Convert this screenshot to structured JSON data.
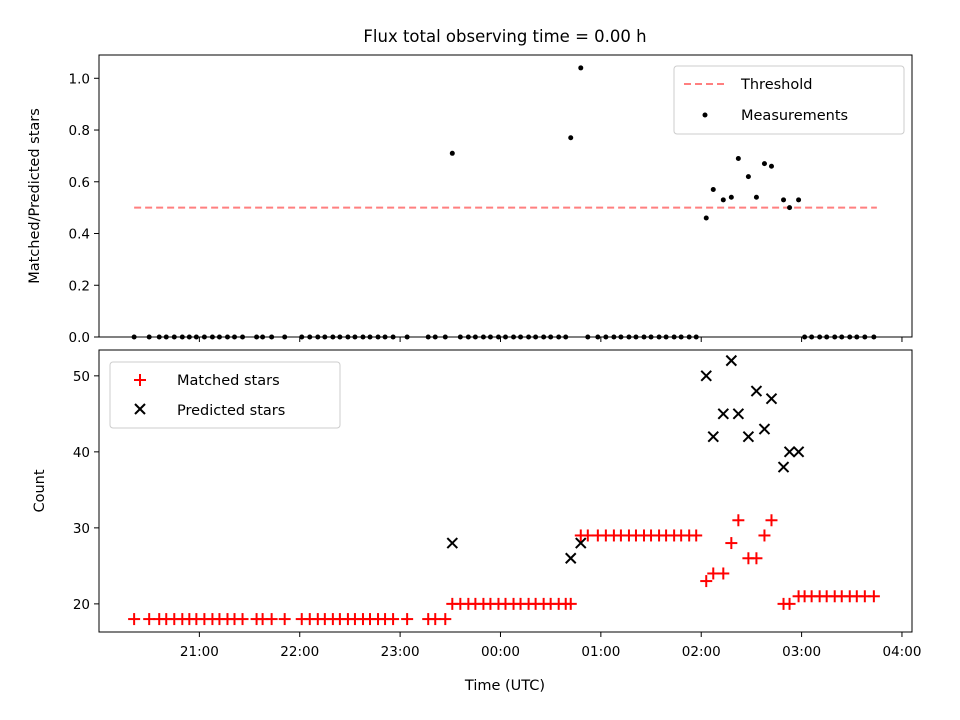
{
  "colors": {
    "threshold": "#ff7f7f",
    "measurement": "#000000",
    "matched": "#ff0000",
    "predicted": "#000000"
  },
  "chart_data": [
    {
      "type": "scatter",
      "title": "Flux total observing time = 0.00 h",
      "xlabel": "",
      "ylabel": "Matched/Predicted stars",
      "xlim": [
        20.0,
        28.1
      ],
      "ylim": [
        0.0,
        1.09
      ],
      "yticks": [
        0.0,
        0.2,
        0.4,
        0.6,
        0.8,
        1.0
      ],
      "ytick_labels": [
        "0.0",
        "0.2",
        "0.4",
        "0.6",
        "0.8",
        "1.0"
      ],
      "xticks": [
        21,
        22,
        23,
        24,
        25,
        26,
        27,
        28
      ],
      "legend": {
        "position": "top-right",
        "entries": [
          "Threshold",
          "Measurements"
        ]
      },
      "threshold": {
        "name": "Threshold",
        "y": 0.5,
        "x_range": [
          20.35,
          27.75
        ]
      },
      "series": [
        {
          "name": "Measurements",
          "marker": "dot",
          "points": [
            [
              20.35,
              0
            ],
            [
              20.5,
              0
            ],
            [
              20.6,
              0
            ],
            [
              20.67,
              0
            ],
            [
              20.75,
              0
            ],
            [
              20.83,
              0
            ],
            [
              20.9,
              0
            ],
            [
              20.97,
              0
            ],
            [
              21.05,
              0
            ],
            [
              21.13,
              0
            ],
            [
              21.2,
              0
            ],
            [
              21.28,
              0
            ],
            [
              21.35,
              0
            ],
            [
              21.43,
              0
            ],
            [
              21.57,
              0
            ],
            [
              21.63,
              0
            ],
            [
              21.72,
              0
            ],
            [
              21.85,
              0
            ],
            [
              22.02,
              0
            ],
            [
              22.1,
              0
            ],
            [
              22.18,
              0
            ],
            [
              22.25,
              0
            ],
            [
              22.33,
              0
            ],
            [
              22.4,
              0
            ],
            [
              22.48,
              0
            ],
            [
              22.55,
              0
            ],
            [
              22.63,
              0
            ],
            [
              22.7,
              0
            ],
            [
              22.78,
              0
            ],
            [
              22.85,
              0
            ],
            [
              22.93,
              0
            ],
            [
              23.07,
              0
            ],
            [
              23.28,
              0
            ],
            [
              23.35,
              0
            ],
            [
              23.45,
              0
            ],
            [
              23.52,
              0.71
            ],
            [
              23.6,
              0
            ],
            [
              23.68,
              0
            ],
            [
              23.75,
              0
            ],
            [
              23.83,
              0
            ],
            [
              23.9,
              0
            ],
            [
              23.98,
              0
            ],
            [
              24.05,
              0
            ],
            [
              24.13,
              0
            ],
            [
              24.2,
              0
            ],
            [
              24.28,
              0
            ],
            [
              24.35,
              0
            ],
            [
              24.43,
              0
            ],
            [
              24.5,
              0
            ],
            [
              24.58,
              0
            ],
            [
              24.65,
              0
            ],
            [
              24.7,
              0.77
            ],
            [
              24.8,
              1.04
            ],
            [
              24.87,
              0
            ],
            [
              24.97,
              0
            ],
            [
              25.05,
              0
            ],
            [
              25.13,
              0
            ],
            [
              25.2,
              0
            ],
            [
              25.28,
              0
            ],
            [
              25.35,
              0
            ],
            [
              25.43,
              0
            ],
            [
              25.5,
              0
            ],
            [
              25.58,
              0
            ],
            [
              25.65,
              0
            ],
            [
              25.73,
              0
            ],
            [
              25.8,
              0
            ],
            [
              25.88,
              0
            ],
            [
              25.95,
              0
            ],
            [
              26.05,
              0.46
            ],
            [
              26.12,
              0.57
            ],
            [
              26.22,
              0.53
            ],
            [
              26.3,
              0.54
            ],
            [
              26.37,
              0.69
            ],
            [
              26.47,
              0.62
            ],
            [
              26.55,
              0.54
            ],
            [
              26.63,
              0.67
            ],
            [
              26.7,
              0.66
            ],
            [
              26.82,
              0.53
            ],
            [
              26.88,
              0.5
            ],
            [
              26.97,
              0.53
            ],
            [
              27.03,
              0
            ],
            [
              27.1,
              0
            ],
            [
              27.18,
              0
            ],
            [
              27.25,
              0
            ],
            [
              27.33,
              0
            ],
            [
              27.4,
              0
            ],
            [
              27.48,
              0
            ],
            [
              27.55,
              0
            ],
            [
              27.63,
              0
            ],
            [
              27.72,
              0
            ]
          ]
        }
      ]
    },
    {
      "type": "scatter",
      "title": "",
      "xlabel": "Time (UTC)",
      "ylabel": "Count",
      "xlim": [
        20.0,
        28.1
      ],
      "ylim": [
        16.3,
        53.4
      ],
      "yticks": [
        20,
        30,
        40,
        50
      ],
      "ytick_labels": [
        "20",
        "30",
        "40",
        "50"
      ],
      "xticks": [
        21,
        22,
        23,
        24,
        25,
        26,
        27,
        28
      ],
      "xtick_labels": [
        "21:00",
        "22:00",
        "23:00",
        "00:00",
        "01:00",
        "02:00",
        "03:00",
        "04:00"
      ],
      "legend": {
        "position": "top-left",
        "entries": [
          "Matched stars",
          "Predicted stars"
        ]
      },
      "series": [
        {
          "name": "Matched stars",
          "marker": "plus",
          "points": [
            [
              20.35,
              18
            ],
            [
              20.5,
              18
            ],
            [
              20.6,
              18
            ],
            [
              20.67,
              18
            ],
            [
              20.75,
              18
            ],
            [
              20.83,
              18
            ],
            [
              20.9,
              18
            ],
            [
              20.97,
              18
            ],
            [
              21.05,
              18
            ],
            [
              21.13,
              18
            ],
            [
              21.2,
              18
            ],
            [
              21.28,
              18
            ],
            [
              21.35,
              18
            ],
            [
              21.43,
              18
            ],
            [
              21.57,
              18
            ],
            [
              21.63,
              18
            ],
            [
              21.72,
              18
            ],
            [
              21.85,
              18
            ],
            [
              22.02,
              18
            ],
            [
              22.1,
              18
            ],
            [
              22.18,
              18
            ],
            [
              22.25,
              18
            ],
            [
              22.33,
              18
            ],
            [
              22.4,
              18
            ],
            [
              22.48,
              18
            ],
            [
              22.55,
              18
            ],
            [
              22.63,
              18
            ],
            [
              22.7,
              18
            ],
            [
              22.78,
              18
            ],
            [
              22.85,
              18
            ],
            [
              22.93,
              18
            ],
            [
              23.07,
              18
            ],
            [
              23.28,
              18
            ],
            [
              23.35,
              18
            ],
            [
              23.45,
              18
            ],
            [
              23.52,
              20
            ],
            [
              23.6,
              20
            ],
            [
              23.68,
              20
            ],
            [
              23.75,
              20
            ],
            [
              23.83,
              20
            ],
            [
              23.9,
              20
            ],
            [
              23.98,
              20
            ],
            [
              24.05,
              20
            ],
            [
              24.13,
              20
            ],
            [
              24.2,
              20
            ],
            [
              24.28,
              20
            ],
            [
              24.35,
              20
            ],
            [
              24.43,
              20
            ],
            [
              24.5,
              20
            ],
            [
              24.58,
              20
            ],
            [
              24.65,
              20
            ],
            [
              24.7,
              20
            ],
            [
              24.8,
              29
            ],
            [
              24.87,
              29
            ],
            [
              24.97,
              29
            ],
            [
              25.05,
              29
            ],
            [
              25.13,
              29
            ],
            [
              25.2,
              29
            ],
            [
              25.28,
              29
            ],
            [
              25.35,
              29
            ],
            [
              25.43,
              29
            ],
            [
              25.5,
              29
            ],
            [
              25.58,
              29
            ],
            [
              25.65,
              29
            ],
            [
              25.73,
              29
            ],
            [
              25.8,
              29
            ],
            [
              25.88,
              29
            ],
            [
              25.95,
              29
            ],
            [
              26.05,
              23
            ],
            [
              26.12,
              24
            ],
            [
              26.22,
              24
            ],
            [
              26.3,
              28
            ],
            [
              26.37,
              31
            ],
            [
              26.47,
              26
            ],
            [
              26.55,
              26
            ],
            [
              26.63,
              29
            ],
            [
              26.7,
              31
            ],
            [
              26.82,
              20
            ],
            [
              26.88,
              20
            ],
            [
              26.97,
              21
            ],
            [
              27.03,
              21
            ],
            [
              27.1,
              21
            ],
            [
              27.18,
              21
            ],
            [
              27.25,
              21
            ],
            [
              27.33,
              21
            ],
            [
              27.4,
              21
            ],
            [
              27.48,
              21
            ],
            [
              27.55,
              21
            ],
            [
              27.63,
              21
            ],
            [
              27.72,
              21
            ]
          ]
        },
        {
          "name": "Predicted stars",
          "marker": "x",
          "points": [
            [
              23.52,
              28
            ],
            [
              24.7,
              26
            ],
            [
              24.8,
              28
            ],
            [
              26.05,
              50
            ],
            [
              26.12,
              42
            ],
            [
              26.22,
              45
            ],
            [
              26.3,
              52
            ],
            [
              26.37,
              45
            ],
            [
              26.47,
              42
            ],
            [
              26.55,
              48
            ],
            [
              26.63,
              43
            ],
            [
              26.7,
              47
            ],
            [
              26.82,
              38
            ],
            [
              26.88,
              40
            ],
            [
              26.97,
              40
            ]
          ]
        }
      ]
    }
  ]
}
